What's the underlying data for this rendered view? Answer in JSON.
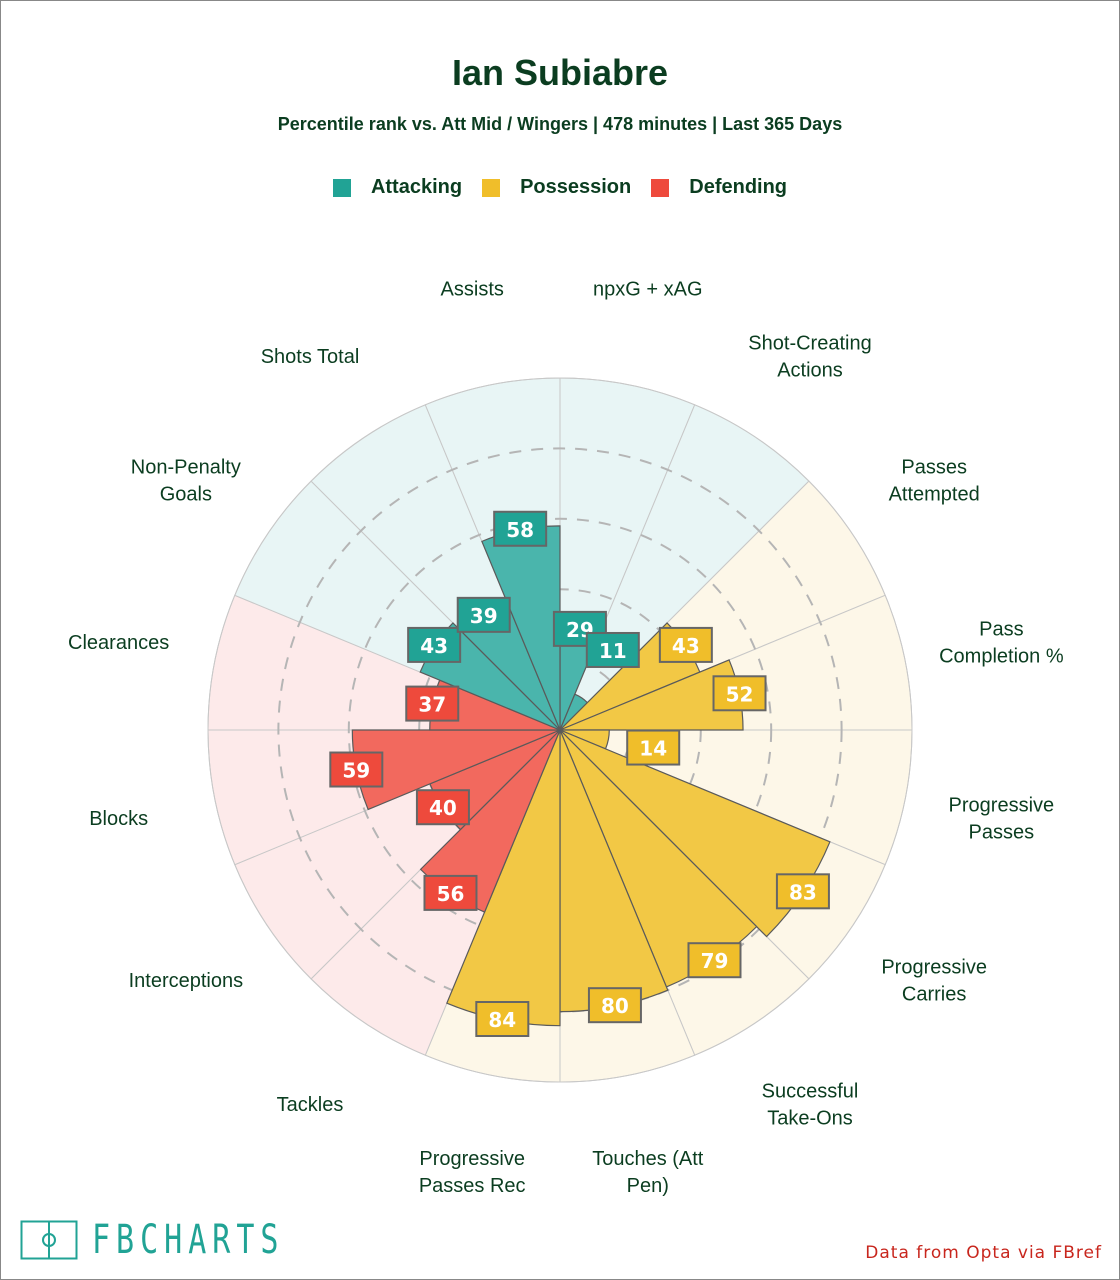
{
  "title": "Ian Subiabre",
  "subtitle": "Percentile rank vs. Att Mid / Wingers | 478 minutes | Last 365 Days",
  "legend": [
    {
      "label": "Attacking",
      "color": "#21a395"
    },
    {
      "label": "Possession",
      "color": "#f0be2a"
    },
    {
      "label": "Defending",
      "color": "#ee4a3c"
    }
  ],
  "logo": {
    "text": "FBCHARTS",
    "icon": "pitch-icon",
    "color": "#21a395"
  },
  "credit": "Data from Opta via FBref",
  "chart_data": {
    "type": "polar-bar",
    "title": "Ian Subiabre",
    "rlim": [
      0,
      100
    ],
    "rings": [
      20,
      40,
      60,
      80,
      100
    ],
    "categories": [
      "npxG + xAG",
      "Shot-Creating Actions",
      "Passes Attempted",
      "Pass Completion %",
      "Progressive Passes",
      "Progressive Carries",
      "Successful Take-Ons",
      "Touches (Att Pen)",
      "Progressive Passes Rec",
      "Tackles",
      "Interceptions",
      "Blocks",
      "Clearances",
      "Non-Penalty Goals",
      "Shots Total",
      "Assists"
    ],
    "label_lines": [
      [
        "npxG + xAG"
      ],
      [
        "Shot-Creating",
        "Actions"
      ],
      [
        "Passes",
        "Attempted"
      ],
      [
        "Pass",
        "Completion %"
      ],
      [
        "Progressive",
        "Passes"
      ],
      [
        "Progressive",
        "Carries"
      ],
      [
        "Successful",
        "Take-Ons"
      ],
      [
        "Touches (Att",
        "Pen)"
      ],
      [
        "Progressive",
        "Passes Rec"
      ],
      [
        "Tackles"
      ],
      [
        "Interceptions"
      ],
      [
        "Blocks"
      ],
      [
        "Clearances"
      ],
      [
        "Non-Penalty",
        "Goals"
      ],
      [
        "Shots Total"
      ],
      [
        "Assists"
      ]
    ],
    "values": [
      29,
      11,
      43,
      52,
      14,
      83,
      79,
      80,
      84,
      56,
      40,
      59,
      37,
      43,
      39,
      58
    ],
    "groups": [
      "Attacking",
      "Attacking",
      "Possession",
      "Possession",
      "Possession",
      "Possession",
      "Possession",
      "Possession",
      "Possession",
      "Defending",
      "Defending",
      "Defending",
      "Defending",
      "Attacking",
      "Attacking",
      "Attacking"
    ],
    "group_colors": {
      "Attacking": {
        "bar": "#4ab5ac",
        "box": "#21a395",
        "bg": "#e8f5f5"
      },
      "Possession": {
        "bar": "#f2c845",
        "box": "#f0be2a",
        "bg": "#fdf7e8"
      },
      "Defending": {
        "bar": "#f2695e",
        "box": "#ee4a3c",
        "bg": "#fdeaea"
      }
    },
    "legend_position": "top-center"
  }
}
